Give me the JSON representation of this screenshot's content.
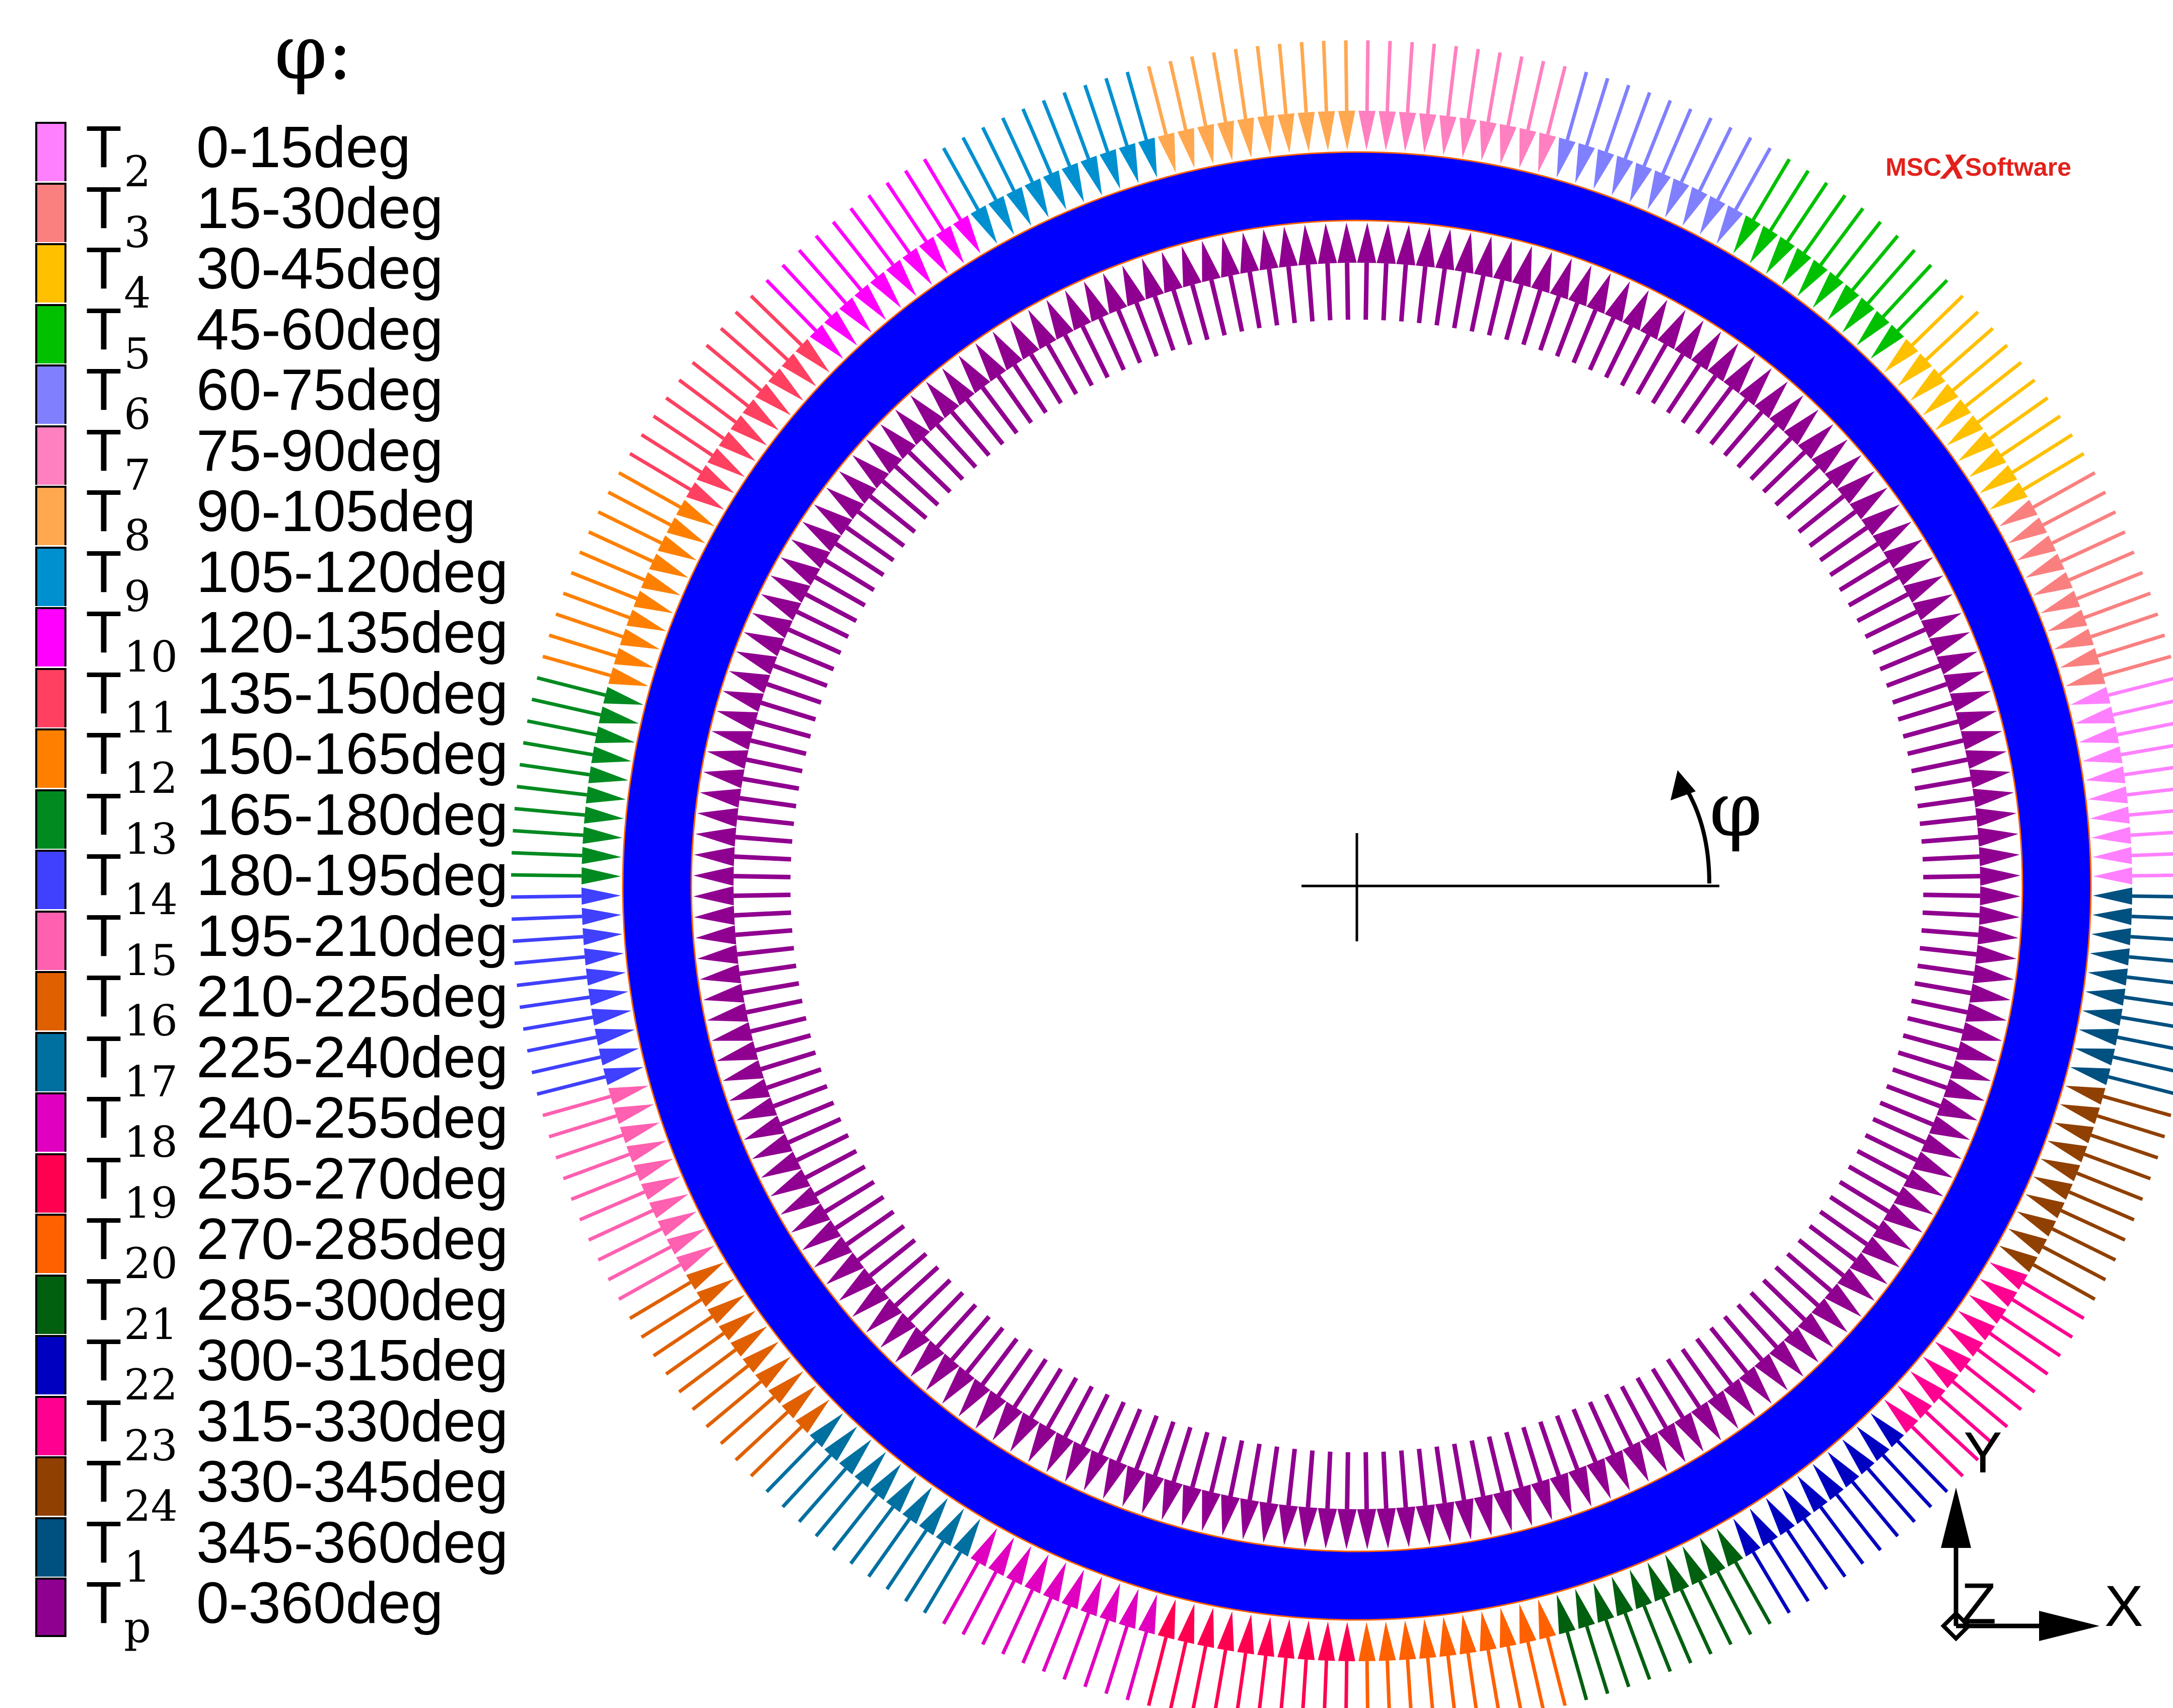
{
  "legend": {
    "title": "φ:",
    "items": [
      {
        "base": "T",
        "sub": "2",
        "range": "0-15deg",
        "color": "#ff80ff"
      },
      {
        "base": "T",
        "sub": "3",
        "range": "15-30deg",
        "color": "#fa8080"
      },
      {
        "base": "T",
        "sub": "4",
        "range": "30-45deg",
        "color": "#ffc000"
      },
      {
        "base": "T",
        "sub": "5",
        "range": "45-60deg",
        "color": "#00c000"
      },
      {
        "base": "T",
        "sub": "6",
        "range": "60-75deg",
        "color": "#8080ff"
      },
      {
        "base": "T",
        "sub": "7",
        "range": "75-90deg",
        "color": "#ff80c0"
      },
      {
        "base": "T",
        "sub": "8",
        "range": "90-105deg",
        "color": "#ffa850"
      },
      {
        "base": "T",
        "sub": "9",
        "range": "105-120deg",
        "color": "#0090d0"
      },
      {
        "base": "T",
        "sub": "10",
        "range": "120-135deg",
        "color": "#ff00ff"
      },
      {
        "base": "T",
        "sub": "11",
        "range": "135-150deg",
        "color": "#ff4060"
      },
      {
        "base": "T",
        "sub": "12",
        "range": "150-165deg",
        "color": "#ff8000"
      },
      {
        "base": "T",
        "sub": "13",
        "range": "165-180deg",
        "color": "#008a20"
      },
      {
        "base": "T",
        "sub": "14",
        "range": "180-195deg",
        "color": "#4040ff"
      },
      {
        "base": "T",
        "sub": "15",
        "range": "195-210deg",
        "color": "#ff60b0"
      },
      {
        "base": "T",
        "sub": "16",
        "range": "210-225deg",
        "color": "#e06000"
      },
      {
        "base": "T",
        "sub": "17",
        "range": "225-240deg",
        "color": "#0070a0"
      },
      {
        "base": "T",
        "sub": "18",
        "range": "240-255deg",
        "color": "#e000c0"
      },
      {
        "base": "T",
        "sub": "19",
        "range": "255-270deg",
        "color": "#ff0050"
      },
      {
        "base": "T",
        "sub": "20",
        "range": "270-285deg",
        "color": "#ff6000"
      },
      {
        "base": "T",
        "sub": "21",
        "range": "285-300deg",
        "color": "#006010"
      },
      {
        "base": "T",
        "sub": "22",
        "range": "300-315deg",
        "color": "#0000c0"
      },
      {
        "base": "T",
        "sub": "23",
        "range": "315-330deg",
        "color": "#ff0090"
      },
      {
        "base": "T",
        "sub": "24",
        "range": "330-345deg",
        "color": "#904000"
      },
      {
        "base": "T",
        "sub": "1",
        "range": "345-360deg",
        "color": "#005080"
      },
      {
        "base": "T",
        "sub": "p",
        "range": "0-360deg",
        "color": "#900090"
      }
    ]
  },
  "diagram": {
    "angle_label": "φ",
    "ring_color": "#0000ff",
    "ring_edge_color": "#ff6000",
    "inner_pressure_color": "#900090",
    "axis_labels": {
      "y": "Y",
      "z": "Z",
      "x": "X"
    }
  },
  "logo": {
    "left": "MSC",
    "mark": "X",
    "right": "Software"
  }
}
